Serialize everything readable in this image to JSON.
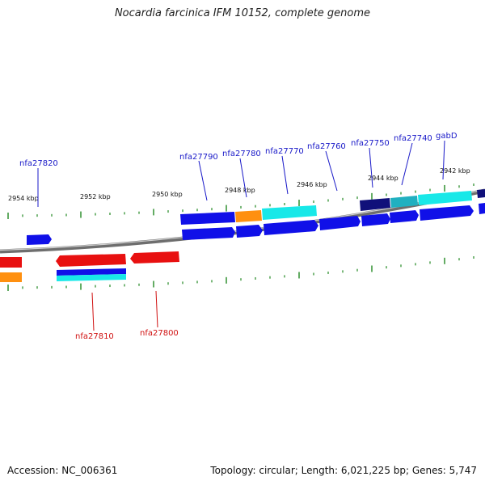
{
  "title": "Nocardia farcinica IFM 10152, complete genome",
  "footer": {
    "accession": "Accession: NC_006361",
    "summary": "Topology: circular; Length: 6,021,225 bp; Genes: 5,747"
  },
  "colors": {
    "backbone": "#8a8a8a",
    "tick": "#228822",
    "blue": "#1010e8",
    "darkblue": "#10107a",
    "cyan": "#18e8e8",
    "teal": "#20b0c0",
    "orange": "#ff9010",
    "red": "#e81010",
    "label_blue": "#1818c8",
    "label_red": "#d01010"
  },
  "kbp_labels": [
    "2954 kbp",
    "2952 kbp",
    "2950 kbp",
    "2948 kbp",
    "2946 kbp",
    "2944 kbp",
    "2942 kbp"
  ],
  "gene_labels_top": [
    "nfa27820",
    "nfa27790",
    "nfa27780",
    "nfa27770",
    "nfa27760",
    "nfa27750",
    "nfa27740",
    "gabD"
  ],
  "gene_labels_bottom": [
    "nfa27810",
    "nfa27800"
  ]
}
